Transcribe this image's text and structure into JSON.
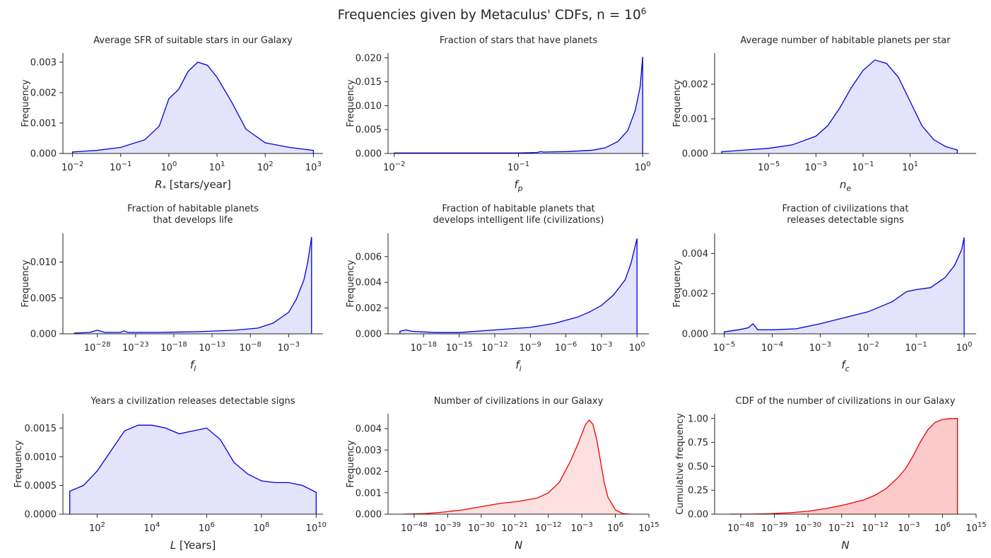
{
  "figure": {
    "suptitle": "Frequencies given by Metaculus' CDFs, n = 10",
    "suptitle_exp": "6"
  },
  "colors": {
    "blue": "#0000dd",
    "blue_fill": "#e3e3fb",
    "red": "#ee0000",
    "red_fill_pdf": "#fde0e0",
    "red_fill_cdf": "#fccaca",
    "axis": "#262626"
  },
  "chart_data": [
    {
      "type": "area",
      "title": [
        "Average SFR of suitable stars in our Galaxy"
      ],
      "xlabel": "R* [stars/year]",
      "xlabel_main": "R",
      "xlabel_sub": "*",
      "xlabel_rest": " [stars/year]",
      "ylabel": "Frequency",
      "xscale": "log",
      "xlim": [
        -2.2,
        3.2
      ],
      "xticks": [
        {
          "exp": "-2",
          "v": -2
        },
        {
          "exp": "-1",
          "v": -1
        },
        {
          "exp": "0",
          "v": 0
        },
        {
          "exp": "1",
          "v": 1
        },
        {
          "exp": "2",
          "v": 2
        },
        {
          "exp": "3",
          "v": 3
        }
      ],
      "ylim": [
        0,
        0.0033
      ],
      "yticks": [
        "0.000",
        "0.001",
        "0.002",
        "0.003"
      ],
      "ytick_values": [
        0,
        0.001,
        0.002,
        0.003
      ],
      "color": "blue",
      "x": [
        -2,
        -1.5,
        -1,
        -0.5,
        -0.2,
        0,
        0.2,
        0.4,
        0.6,
        0.8,
        1,
        1.3,
        1.6,
        2,
        2.5,
        3
      ],
      "y": [
        5e-05,
        0.0001,
        0.0002,
        0.00045,
        0.0009,
        0.0018,
        0.0021,
        0.0027,
        0.003,
        0.0029,
        0.0025,
        0.0017,
        0.0008,
        0.00035,
        0.0002,
        0.0001
      ]
    },
    {
      "type": "area",
      "title": [
        "Fraction of stars that have planets"
      ],
      "xlabel": "f_p",
      "xlabel_main": "f",
      "xlabel_sub": "p",
      "xlabel_rest": "",
      "ylabel": "Frequency",
      "xscale": "log",
      "xlim": [
        -2.05,
        0.05
      ],
      "xticks": [
        {
          "exp": "-2",
          "v": -2
        },
        {
          "exp": "-1",
          "v": -1
        },
        {
          "exp": "0",
          "v": 0
        }
      ],
      "ylim": [
        0,
        0.021
      ],
      "yticks": [
        "0.000",
        "0.005",
        "0.010",
        "0.015",
        "0.020"
      ],
      "ytick_values": [
        0,
        0.005,
        0.01,
        0.015,
        0.02
      ],
      "color": "blue",
      "x": [
        -2,
        -1.5,
        -1,
        -0.85,
        -0.82,
        -0.8,
        -0.6,
        -0.4,
        -0.3,
        -0.2,
        -0.12,
        -0.06,
        -0.02,
        0
      ],
      "y": [
        0.0001,
        0.0001,
        0.0001,
        0.0002,
        0.0004,
        0.0003,
        0.0004,
        0.0007,
        0.0012,
        0.0025,
        0.0048,
        0.009,
        0.014,
        0.0202
      ]
    },
    {
      "type": "area",
      "title": [
        "Average number of habitable planets per star"
      ],
      "xlabel": "n_e",
      "xlabel_main": "n",
      "xlabel_sub": "e",
      "xlabel_rest": "",
      "ylabel": "Frequency",
      "xscale": "log",
      "xlim": [
        -7.3,
        3.8
      ],
      "xticks": [
        {
          "exp": "-5",
          "v": -5
        },
        {
          "exp": "-3",
          "v": -3
        },
        {
          "exp": "-1",
          "v": -1
        },
        {
          "exp": "1",
          "v": 1
        }
      ],
      "ylim": [
        0,
        0.0029
      ],
      "yticks": [
        "0.000",
        "0.001",
        "0.002"
      ],
      "ytick_values": [
        0,
        0.001,
        0.002
      ],
      "color": "blue",
      "x": [
        -7,
        -6,
        -5,
        -4,
        -3,
        -2.5,
        -2,
        -1.5,
        -1,
        -0.5,
        0,
        0.5,
        1,
        1.5,
        2,
        2.5,
        3
      ],
      "y": [
        5e-05,
        0.0001,
        0.00015,
        0.00025,
        0.0005,
        0.0008,
        0.0013,
        0.0019,
        0.0024,
        0.0027,
        0.0026,
        0.0022,
        0.0015,
        0.0008,
        0.0004,
        0.0002,
        0.0001
      ]
    },
    {
      "type": "area",
      "title": [
        "Fraction of habitable planets",
        "that develops life"
      ],
      "xlabel": "f_l",
      "xlabel_main": "f",
      "xlabel_sub": "l",
      "xlabel_rest": "",
      "ylabel": "Frequency",
      "xscale": "log",
      "xlim": [
        -32.5,
        1.5
      ],
      "xticks": [
        {
          "exp": "-28",
          "v": -28
        },
        {
          "exp": "-23",
          "v": -23
        },
        {
          "exp": "-18",
          "v": -18
        },
        {
          "exp": "-13",
          "v": -13
        },
        {
          "exp": "-8",
          "v": -8
        },
        {
          "exp": "-3",
          "v": -3
        }
      ],
      "ylim": [
        0,
        0.014
      ],
      "yticks": [
        "0.000",
        "0.005",
        "0.010"
      ],
      "ytick_values": [
        0,
        0.005,
        0.01
      ],
      "color": "blue",
      "x": [
        -31,
        -29,
        -28,
        -27,
        -25,
        -24.5,
        -24,
        -20,
        -15,
        -10,
        -7,
        -5,
        -3,
        -2,
        -1,
        -0.5,
        0
      ],
      "y": [
        0.0001,
        0.0002,
        0.0005,
        0.0002,
        0.0002,
        0.0004,
        0.0002,
        0.0002,
        0.0003,
        0.0005,
        0.0008,
        0.0015,
        0.003,
        0.0048,
        0.0075,
        0.01,
        0.0135
      ]
    },
    {
      "type": "area",
      "title": [
        "Fraction of habitable planets that",
        "develops intelligent life (civilizations)"
      ],
      "xlabel": "f_i",
      "xlabel_main": "f",
      "xlabel_sub": "i",
      "xlabel_rest": "",
      "ylabel": "Frequency",
      "xscale": "log",
      "xlim": [
        -21,
        1
      ],
      "xticks": [
        {
          "exp": "-18",
          "v": -18
        },
        {
          "exp": "-15",
          "v": -15
        },
        {
          "exp": "-12",
          "v": -12
        },
        {
          "exp": "-9",
          "v": -9
        },
        {
          "exp": "-6",
          "v": -6
        },
        {
          "exp": "-3",
          "v": -3
        },
        {
          "exp": "0",
          "v": 0
        }
      ],
      "ylim": [
        0,
        0.0078
      ],
      "yticks": [
        "0.000",
        "0.002",
        "0.004",
        "0.006"
      ],
      "ytick_values": [
        0,
        0.002,
        0.004,
        0.006
      ],
      "color": "blue",
      "x": [
        -20,
        -19.5,
        -19,
        -17,
        -15,
        -12,
        -9,
        -7,
        -5,
        -4,
        -3,
        -2,
        -1,
        -0.5,
        0
      ],
      "y": [
        0.0002,
        0.0003,
        0.0002,
        0.0001,
        0.0001,
        0.0003,
        0.0005,
        0.0008,
        0.0013,
        0.0017,
        0.0022,
        0.003,
        0.0042,
        0.0055,
        0.0074
      ]
    },
    {
      "type": "area",
      "title": [
        "Fraction of civilizations that",
        "releases detectable signs"
      ],
      "xlabel": "f_c",
      "xlabel_main": "f",
      "xlabel_sub": "c",
      "xlabel_rest": "",
      "ylabel": "Frequency",
      "xscale": "log",
      "xlim": [
        -5.2,
        0.25
      ],
      "xticks": [
        {
          "exp": "-5",
          "v": -5
        },
        {
          "exp": "-4",
          "v": -4
        },
        {
          "exp": "-3",
          "v": -3
        },
        {
          "exp": "-2",
          "v": -2
        },
        {
          "exp": "-1",
          "v": -1
        },
        {
          "exp": "0",
          "v": 0
        }
      ],
      "ylim": [
        0,
        0.005
      ],
      "yticks": [
        "0.000",
        "0.002",
        "0.004"
      ],
      "ytick_values": [
        0,
        0.002,
        0.004
      ],
      "color": "blue",
      "x": [
        -5,
        -4.7,
        -4.5,
        -4.4,
        -4.3,
        -4,
        -3.5,
        -3,
        -2.5,
        -2,
        -1.5,
        -1.2,
        -1,
        -0.7,
        -0.4,
        -0.2,
        -0.05,
        0
      ],
      "y": [
        0.0001,
        0.0002,
        0.0003,
        0.0005,
        0.0002,
        0.0002,
        0.00025,
        0.0005,
        0.0008,
        0.0011,
        0.0016,
        0.0021,
        0.0022,
        0.0023,
        0.0028,
        0.0034,
        0.0042,
        0.0048
      ]
    },
    {
      "type": "area",
      "title": [
        "Years a civilization releases detectable signs"
      ],
      "xlabel": "L [Years]",
      "xlabel_main": "L",
      "xlabel_sub": "",
      "xlabel_rest": " [Years]",
      "ylabel": "Frequency",
      "xscale": "log",
      "xlim": [
        0.75,
        10.25
      ],
      "xticks": [
        {
          "exp": "2",
          "v": 2
        },
        {
          "exp": "4",
          "v": 4
        },
        {
          "exp": "6",
          "v": 6
        },
        {
          "exp": "8",
          "v": 8
        },
        {
          "exp": "10",
          "v": 10
        }
      ],
      "ylim": [
        0,
        0.00175
      ],
      "yticks": [
        "0.0000",
        "0.0005",
        "0.0010",
        "0.0015"
      ],
      "ytick_values": [
        0,
        0.0005,
        0.001,
        0.0015
      ],
      "color": "blue",
      "x": [
        1,
        1.5,
        2,
        2.5,
        3,
        3.5,
        4,
        4.5,
        5,
        5.5,
        6,
        6.5,
        7,
        7.5,
        8,
        8.5,
        9,
        9.5,
        10
      ],
      "y": [
        0.0004,
        0.0005,
        0.00075,
        0.0011,
        0.00145,
        0.00155,
        0.00155,
        0.0015,
        0.0014,
        0.00145,
        0.0015,
        0.0013,
        0.0009,
        0.0007,
        0.00058,
        0.00055,
        0.00055,
        0.0005,
        0.00038
      ]
    },
    {
      "type": "area",
      "title": [
        "Number of civilizations in our Galaxy"
      ],
      "xlabel": "N",
      "xlabel_main": "N",
      "xlabel_sub": "",
      "xlabel_rest": "",
      "ylabel": "Frequency",
      "xscale": "log",
      "xlim": [
        -55,
        15
      ],
      "xticks": [
        {
          "exp": "-48",
          "v": -48
        },
        {
          "exp": "-39",
          "v": -39
        },
        {
          "exp": "-30",
          "v": -30
        },
        {
          "exp": "-21",
          "v": -21
        },
        {
          "exp": "-12",
          "v": -12
        },
        {
          "exp": "-3",
          "v": -3
        },
        {
          "exp": "6",
          "v": 6
        },
        {
          "exp": "15",
          "v": 15
        }
      ],
      "ylim": [
        0,
        0.0047
      ],
      "yticks": [
        "0.000",
        "0.001",
        "0.002",
        "0.003",
        "0.004"
      ],
      "ytick_values": [
        0,
        0.001,
        0.002,
        0.003,
        0.004
      ],
      "color": "red",
      "x": [
        -51,
        -45,
        -40,
        -35,
        -30,
        -25,
        -20,
        -15,
        -12,
        -9,
        -6,
        -4,
        -2,
        -1,
        0,
        1,
        2,
        3,
        4,
        6,
        8,
        10
      ],
      "y": [
        0,
        3e-05,
        0.0001,
        0.0002,
        0.00035,
        0.0005,
        0.0006,
        0.00075,
        0.001,
        0.0015,
        0.0025,
        0.0033,
        0.0042,
        0.0044,
        0.0042,
        0.0035,
        0.0025,
        0.0015,
        0.0008,
        0.0002,
        3e-05,
        0
      ]
    },
    {
      "type": "area",
      "title": [
        "CDF of the number of civilizations in our Galaxy"
      ],
      "xlabel": "N",
      "xlabel_main": "N",
      "xlabel_sub": "",
      "xlabel_rest": "",
      "ylabel": "Cumulative frequency",
      "xscale": "log",
      "xlim": [
        -55,
        15
      ],
      "xticks": [
        {
          "exp": "-48",
          "v": -48
        },
        {
          "exp": "-39",
          "v": -39
        },
        {
          "exp": "-30",
          "v": -30
        },
        {
          "exp": "-21",
          "v": -21
        },
        {
          "exp": "-12",
          "v": -12
        },
        {
          "exp": "-3",
          "v": -3
        },
        {
          "exp": "6",
          "v": 6
        },
        {
          "exp": "15",
          "v": 15
        }
      ],
      "ylim": [
        0,
        1.05
      ],
      "yticks": [
        "0.00",
        "0.25",
        "0.50",
        "0.75",
        "1.00"
      ],
      "ytick_values": [
        0,
        0.25,
        0.5,
        0.75,
        1
      ],
      "color": "red",
      "x": [
        -51,
        -45,
        -40,
        -35,
        -30,
        -25,
        -20,
        -15,
        -12,
        -9,
        -6,
        -4,
        -2,
        0,
        2,
        4,
        6,
        8,
        10
      ],
      "y": [
        0,
        0.001,
        0.005,
        0.015,
        0.03,
        0.06,
        0.1,
        0.15,
        0.2,
        0.27,
        0.38,
        0.47,
        0.6,
        0.75,
        0.88,
        0.96,
        0.99,
        1.0,
        1.0
      ]
    }
  ]
}
